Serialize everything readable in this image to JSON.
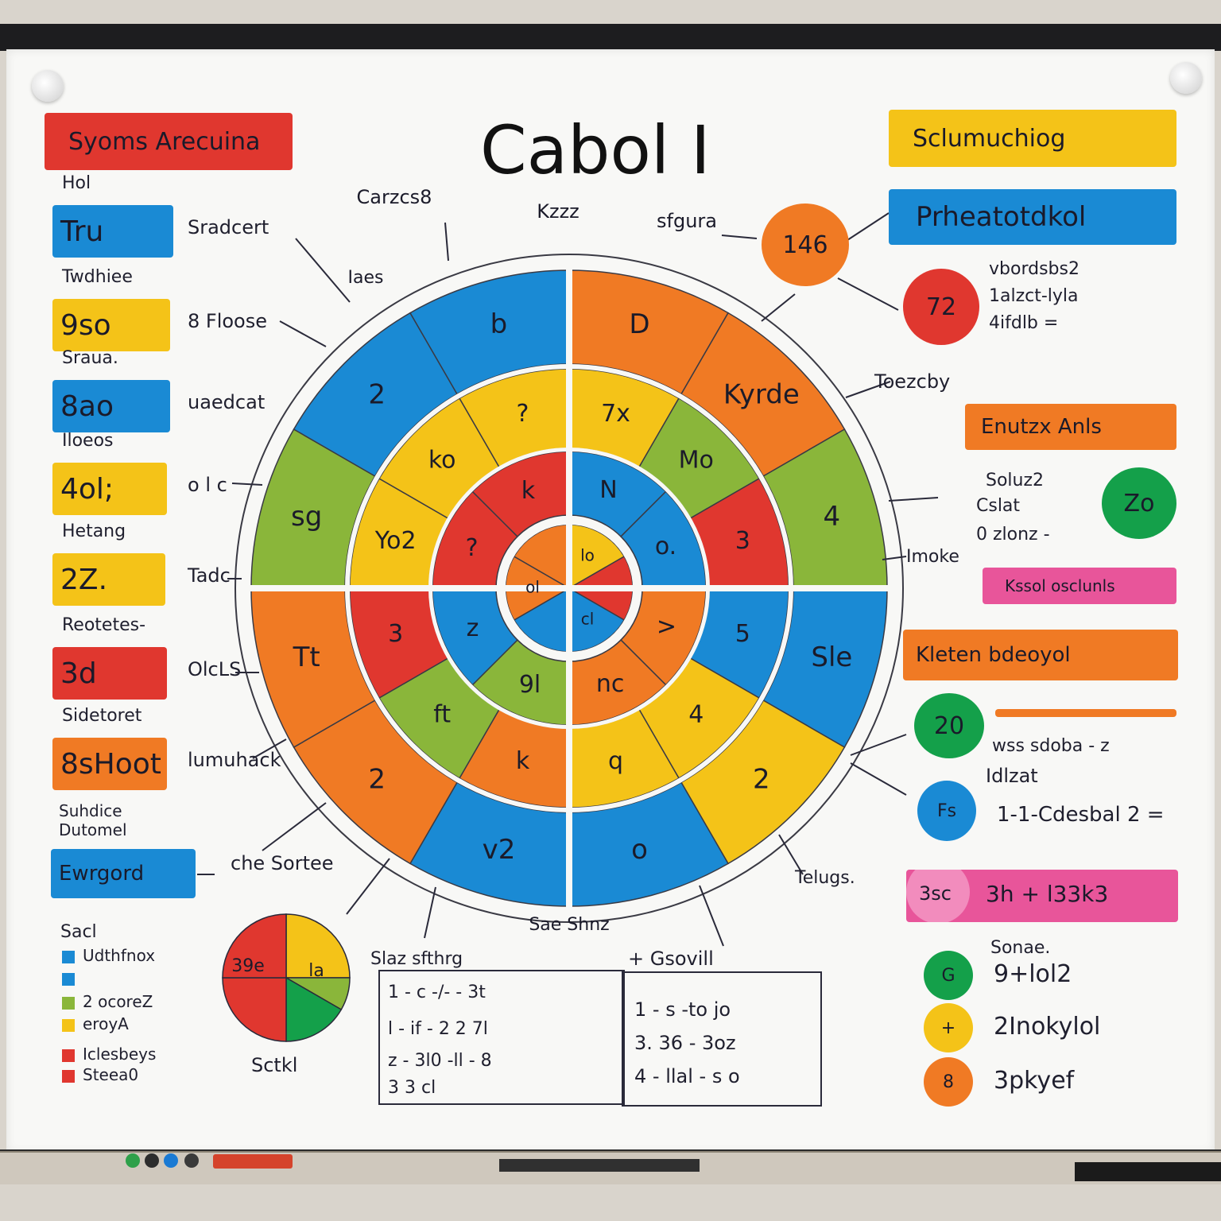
{
  "title": "Cabol I",
  "left_panel": {
    "header": "Syoms Arecuina",
    "rows": [
      {
        "caption": "Hol",
        "box_text": "Tru",
        "box_color": "#1a8ad4",
        "side": "Sradcert"
      },
      {
        "caption": "Twdhiee",
        "box_text": "9so",
        "box_color": "#f4c318",
        "side": "8 Floose"
      },
      {
        "caption": "Sraua.",
        "box_text": "8ao",
        "box_color": "#1a8ad4",
        "side": "uaedcat"
      },
      {
        "caption": "Iloeos",
        "box_text": "4ol;",
        "box_color": "#f4c318",
        "side": "o l c"
      },
      {
        "caption": "Hetang",
        "box_text": "2Z.",
        "box_color": "#f4c318",
        "side": "Tadc"
      },
      {
        "caption": "Reotetes-",
        "box_text": "3d",
        "box_color": "#e0372f",
        "side": "OlcLS"
      },
      {
        "caption": "Sidetoret",
        "box_text": "8sHoot",
        "box_color": "#f07a24",
        "side": "lumuhack"
      },
      {
        "caption": "Suhdice Dutomel",
        "box_text": "Ewrgord",
        "box_color": "#1a8ad4",
        "side": "che Sortee"
      }
    ]
  },
  "wheel": {
    "top_labels": [
      "Carzcs8",
      "Kzzz",
      "sfgura"
    ],
    "side_labels": [
      "Iaes",
      "Toezcby",
      "Imoke",
      "Sae Shnz",
      "Telugs."
    ],
    "outer_texts": [
      "D",
      "Kyrde",
      "4",
      "Sle",
      "2",
      "o",
      "v2",
      "2",
      "Tt",
      "sg",
      "2",
      "b"
    ],
    "middle_texts": [
      "7x",
      "Mo",
      "3",
      "5",
      "4",
      "q",
      "k",
      "ft",
      "3",
      "Yo2",
      "ko",
      "?"
    ],
    "inner_texts": [
      "N",
      "o.",
      ">",
      "nc",
      "9l",
      "z",
      "?",
      "k"
    ],
    "core_texts": [
      "lo",
      "cl",
      "ol"
    ]
  },
  "right_panel": {
    "header_yellow": "Sclumuchiog",
    "header_blue": "Prheatotdkol",
    "orange_circle": "146",
    "red_circle": "72",
    "red_notes": [
      "vbordsbs2",
      "1alzct-lyla",
      "4ifdlb ="
    ],
    "orange_bar": "Enutzx Anls",
    "green_circle": "Zo",
    "green_notes": [
      "Soluz2",
      "Cslat",
      "0 zlonz -"
    ],
    "pink_bar": "Kssol osclunls",
    "orange_bar2": "Kleten bdeoyol",
    "green_circle2": "20",
    "notes2": [
      "wss sdoba - z",
      "Idlzat",
      "1-1-Cdesbal 2 ="
    ],
    "blue_circle": "Fs",
    "pink_bar2_left": "3sc",
    "pink_bar2_right": "3h + l33k3",
    "legend_title": "Sonae.",
    "legend": [
      {
        "dot": "G",
        "color": "#14a04a",
        "text": "9+lol2"
      },
      {
        "dot": "+",
        "color": "#f4c318",
        "text": "2Inokylol"
      },
      {
        "dot": "8",
        "color": "#f07a24",
        "text": "3pkyef"
      }
    ]
  },
  "bottom_left": {
    "title": "Sacl",
    "legend": [
      {
        "color": "#1a8ad4",
        "text": "Udthfnox"
      },
      {
        "color": "#1a8ad4",
        "text": ""
      },
      {
        "color": "#8ab63a",
        "text": "2 ocoreZ"
      },
      {
        "color": "#f4c318",
        "text": "eroyA"
      },
      {
        "color": "#e0372f",
        "text": "Iclesbeys"
      },
      {
        "color": "#e0372f",
        "text": "Steea0"
      }
    ],
    "pie_labels": [
      "39e",
      "la"
    ],
    "caption": "Sctkl"
  },
  "bottom_tables": {
    "left_title": "Slaz sfthrg",
    "left_rows": [
      "1 - c -/- - 3t",
      "l - if - 2 2 7l",
      "z - 3l0 -ll - 8",
      "3 3 cl"
    ],
    "right_title": "+ Gsovill",
    "right_rows": [
      "1 - s -to jo",
      "3. 36 - 3oz",
      "4 - llal - s o"
    ]
  },
  "colors": {
    "blue": "#1a8ad4",
    "orange": "#f07a24",
    "yellow": "#f4c318",
    "red": "#e0372f",
    "green": "#8ab63a",
    "pink": "#e8559a"
  }
}
